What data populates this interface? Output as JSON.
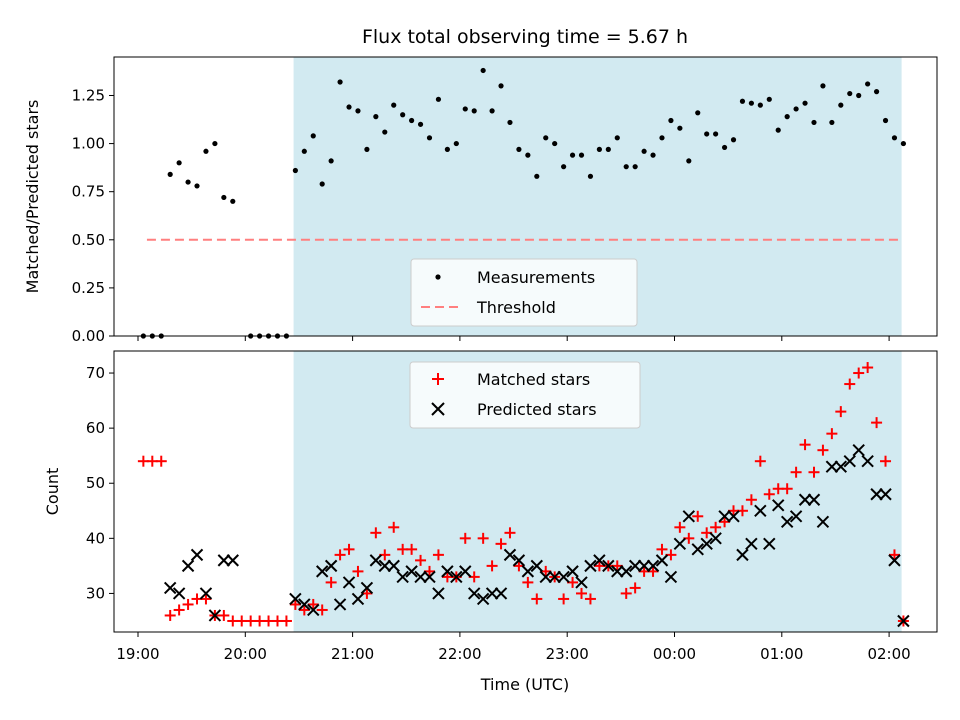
{
  "title": "Flux total observing time = 5.67 h",
  "chart_data": [
    {
      "type": "scatter",
      "panel": "top",
      "ylabel": "Matched/Predicted stars",
      "ylim": [
        0,
        1.45
      ],
      "y_ticks": [
        0,
        0.25,
        0.5,
        0.75,
        1.0,
        1.25
      ],
      "y_tick_labels": [
        "0.00",
        "0.25",
        "0.50",
        "0.75",
        "1.00",
        "1.25"
      ],
      "shaded_region": {
        "start": "20:27",
        "end": "02:07",
        "color": "#add8e6"
      },
      "threshold": {
        "name": "Threshold",
        "value": 0.5,
        "from": "19:05",
        "to": "02:07",
        "color": "#ff7f7f",
        "style": "dashed"
      },
      "legend_position": "lower-center",
      "series": [
        {
          "name": "Measurements",
          "color": "#000000",
          "marker": "dot",
          "points": [
            [
              "19:03",
              0
            ],
            [
              "19:08",
              0
            ],
            [
              "19:13",
              0
            ],
            [
              "19:18",
              0.84
            ],
            [
              "19:23",
              0.9
            ],
            [
              "19:28",
              0.8
            ],
            [
              "19:33",
              0.78
            ],
            [
              "19:38",
              0.96
            ],
            [
              "19:43",
              1.0
            ],
            [
              "19:48",
              0.72
            ],
            [
              "19:53",
              0.7
            ],
            [
              "20:03",
              0
            ],
            [
              "20:08",
              0
            ],
            [
              "20:13",
              0
            ],
            [
              "20:18",
              0
            ],
            [
              "20:23",
              0
            ],
            [
              "20:28",
              0.86
            ],
            [
              "20:33",
              0.96
            ],
            [
              "20:38",
              1.04
            ],
            [
              "20:43",
              0.79
            ],
            [
              "20:48",
              0.91
            ],
            [
              "20:53",
              1.32
            ],
            [
              "20:58",
              1.19
            ],
            [
              "21:03",
              1.17
            ],
            [
              "21:08",
              0.97
            ],
            [
              "21:13",
              1.14
            ],
            [
              "21:18",
              1.06
            ],
            [
              "21:23",
              1.2
            ],
            [
              "21:28",
              1.15
            ],
            [
              "21:33",
              1.12
            ],
            [
              "21:38",
              1.1
            ],
            [
              "21:43",
              1.03
            ],
            [
              "21:48",
              1.23
            ],
            [
              "21:53",
              0.97
            ],
            [
              "21:58",
              1.0
            ],
            [
              "22:03",
              1.18
            ],
            [
              "22:08",
              1.17
            ],
            [
              "22:13",
              1.38
            ],
            [
              "22:18",
              1.17
            ],
            [
              "22:23",
              1.3
            ],
            [
              "22:28",
              1.11
            ],
            [
              "22:33",
              0.97
            ],
            [
              "22:38",
              0.94
            ],
            [
              "22:43",
              0.83
            ],
            [
              "22:48",
              1.03
            ],
            [
              "22:53",
              1.0
            ],
            [
              "22:58",
              0.88
            ],
            [
              "23:03",
              0.94
            ],
            [
              "23:08",
              0.94
            ],
            [
              "23:13",
              0.83
            ],
            [
              "23:18",
              0.97
            ],
            [
              "23:23",
              0.97
            ],
            [
              "23:28",
              1.03
            ],
            [
              "23:33",
              0.88
            ],
            [
              "23:38",
              0.88
            ],
            [
              "23:43",
              0.96
            ],
            [
              "23:48",
              0.94
            ],
            [
              "23:53",
              1.03
            ],
            [
              "23:58",
              1.12
            ],
            [
              "00:03",
              1.08
            ],
            [
              "00:08",
              0.91
            ],
            [
              "00:13",
              1.16
            ],
            [
              "00:18",
              1.05
            ],
            [
              "00:23",
              1.05
            ],
            [
              "00:28",
              0.98
            ],
            [
              "00:33",
              1.02
            ],
            [
              "00:38",
              1.22
            ],
            [
              "00:43",
              1.21
            ],
            [
              "00:48",
              1.2
            ],
            [
              "00:53",
              1.23
            ],
            [
              "00:58",
              1.07
            ],
            [
              "01:03",
              1.14
            ],
            [
              "01:08",
              1.18
            ],
            [
              "01:13",
              1.21
            ],
            [
              "01:18",
              1.11
            ],
            [
              "01:23",
              1.3
            ],
            [
              "01:28",
              1.11
            ],
            [
              "01:33",
              1.2
            ],
            [
              "01:38",
              1.26
            ],
            [
              "01:43",
              1.25
            ],
            [
              "01:48",
              1.31
            ],
            [
              "01:53",
              1.27
            ],
            [
              "01:58",
              1.12
            ],
            [
              "02:03",
              1.03
            ],
            [
              "02:08",
              1.0
            ]
          ]
        },
        {
          "name": "Threshold",
          "color": "#ff7f7f",
          "marker": "dashed-line"
        }
      ]
    },
    {
      "type": "scatter",
      "panel": "bottom",
      "ylabel": "Count",
      "xlabel": "Time (UTC)",
      "ylim": [
        23,
        74
      ],
      "y_ticks": [
        30,
        40,
        50,
        60,
        70
      ],
      "y_tick_labels": [
        "30",
        "40",
        "50",
        "60",
        "70"
      ],
      "x_ticks": [
        "19:00",
        "20:00",
        "21:00",
        "22:00",
        "23:00",
        "00:00",
        "01:00",
        "02:00"
      ],
      "shaded_region": {
        "start": "20:27",
        "end": "02:07",
        "color": "#add8e6"
      },
      "legend_position": "upper-center",
      "series": [
        {
          "name": "Matched stars",
          "color": "#ff0000",
          "marker": "plus",
          "points": [
            [
              "19:03",
              54
            ],
            [
              "19:08",
              54
            ],
            [
              "19:13",
              54
            ],
            [
              "19:18",
              26
            ],
            [
              "19:23",
              27
            ],
            [
              "19:28",
              28
            ],
            [
              "19:33",
              29
            ],
            [
              "19:38",
              29
            ],
            [
              "19:43",
              26
            ],
            [
              "19:48",
              26
            ],
            [
              "19:53",
              25
            ],
            [
              "19:58",
              25
            ],
            [
              "20:03",
              25
            ],
            [
              "20:08",
              25
            ],
            [
              "20:13",
              25
            ],
            [
              "20:18",
              25
            ],
            [
              "20:23",
              25
            ],
            [
              "20:28",
              28
            ],
            [
              "20:33",
              27
            ],
            [
              "20:38",
              28
            ],
            [
              "20:43",
              27
            ],
            [
              "20:48",
              32
            ],
            [
              "20:53",
              37
            ],
            [
              "20:58",
              38
            ],
            [
              "21:03",
              34
            ],
            [
              "21:08",
              30
            ],
            [
              "21:13",
              41
            ],
            [
              "21:18",
              37
            ],
            [
              "21:23",
              42
            ],
            [
              "21:28",
              38
            ],
            [
              "21:33",
              38
            ],
            [
              "21:38",
              36
            ],
            [
              "21:43",
              34
            ],
            [
              "21:48",
              37
            ],
            [
              "21:53",
              33
            ],
            [
              "21:58",
              33
            ],
            [
              "22:03",
              40
            ],
            [
              "22:08",
              33
            ],
            [
              "22:13",
              40
            ],
            [
              "22:18",
              35
            ],
            [
              "22:23",
              39
            ],
            [
              "22:28",
              41
            ],
            [
              "22:33",
              35
            ],
            [
              "22:38",
              32
            ],
            [
              "22:43",
              29
            ],
            [
              "22:48",
              34
            ],
            [
              "22:53",
              33
            ],
            [
              "22:58",
              29
            ],
            [
              "23:03",
              32
            ],
            [
              "23:08",
              30
            ],
            [
              "23:13",
              29
            ],
            [
              "23:18",
              35
            ],
            [
              "23:23",
              35
            ],
            [
              "23:28",
              35
            ],
            [
              "23:33",
              30
            ],
            [
              "23:38",
              31
            ],
            [
              "23:43",
              34
            ],
            [
              "23:48",
              34
            ],
            [
              "23:53",
              38
            ],
            [
              "23:58",
              37
            ],
            [
              "00:03",
              42
            ],
            [
              "00:08",
              40
            ],
            [
              "00:13",
              44
            ],
            [
              "00:18",
              41
            ],
            [
              "00:23",
              42
            ],
            [
              "00:28",
              43
            ],
            [
              "00:33",
              45
            ],
            [
              "00:38",
              45
            ],
            [
              "00:43",
              47
            ],
            [
              "00:48",
              54
            ],
            [
              "00:53",
              48
            ],
            [
              "00:58",
              49
            ],
            [
              "01:03",
              49
            ],
            [
              "01:08",
              52
            ],
            [
              "01:13",
              57
            ],
            [
              "01:18",
              52
            ],
            [
              "01:23",
              56
            ],
            [
              "01:28",
              59
            ],
            [
              "01:33",
              63
            ],
            [
              "01:38",
              68
            ],
            [
              "01:43",
              70
            ],
            [
              "01:48",
              71
            ],
            [
              "01:53",
              61
            ],
            [
              "01:58",
              54
            ],
            [
              "02:03",
              37
            ],
            [
              "02:08",
              25
            ]
          ]
        },
        {
          "name": "Predicted stars",
          "color": "#000000",
          "marker": "x",
          "points": [
            [
              "19:18",
              31
            ],
            [
              "19:23",
              30
            ],
            [
              "19:28",
              35
            ],
            [
              "19:33",
              37
            ],
            [
              "19:38",
              30
            ],
            [
              "19:43",
              26
            ],
            [
              "19:48",
              36
            ],
            [
              "19:53",
              36
            ],
            [
              "20:28",
              29
            ],
            [
              "20:33",
              28
            ],
            [
              "20:38",
              27
            ],
            [
              "20:43",
              34
            ],
            [
              "20:48",
              35
            ],
            [
              "20:53",
              28
            ],
            [
              "20:58",
              32
            ],
            [
              "21:03",
              29
            ],
            [
              "21:08",
              31
            ],
            [
              "21:13",
              36
            ],
            [
              "21:18",
              35
            ],
            [
              "21:23",
              35
            ],
            [
              "21:28",
              33
            ],
            [
              "21:33",
              34
            ],
            [
              "21:38",
              33
            ],
            [
              "21:43",
              33
            ],
            [
              "21:48",
              30
            ],
            [
              "21:53",
              34
            ],
            [
              "21:58",
              33
            ],
            [
              "22:03",
              34
            ],
            [
              "22:08",
              30
            ],
            [
              "22:13",
              29
            ],
            [
              "22:18",
              30
            ],
            [
              "22:23",
              30
            ],
            [
              "22:28",
              37
            ],
            [
              "22:33",
              36
            ],
            [
              "22:38",
              34
            ],
            [
              "22:43",
              35
            ],
            [
              "22:48",
              33
            ],
            [
              "22:53",
              33
            ],
            [
              "22:58",
              33
            ],
            [
              "23:03",
              34
            ],
            [
              "23:08",
              32
            ],
            [
              "23:13",
              35
            ],
            [
              "23:18",
              36
            ],
            [
              "23:23",
              35
            ],
            [
              "23:28",
              34
            ],
            [
              "23:33",
              34
            ],
            [
              "23:38",
              35
            ],
            [
              "23:43",
              35
            ],
            [
              "23:48",
              35
            ],
            [
              "23:53",
              36
            ],
            [
              "23:58",
              33
            ],
            [
              "00:03",
              39
            ],
            [
              "00:08",
              44
            ],
            [
              "00:13",
              38
            ],
            [
              "00:18",
              39
            ],
            [
              "00:23",
              40
            ],
            [
              "00:28",
              44
            ],
            [
              "00:33",
              44
            ],
            [
              "00:38",
              37
            ],
            [
              "00:43",
              39
            ],
            [
              "00:48",
              45
            ],
            [
              "00:53",
              39
            ],
            [
              "00:58",
              46
            ],
            [
              "01:03",
              43
            ],
            [
              "01:08",
              44
            ],
            [
              "01:13",
              47
            ],
            [
              "01:18",
              47
            ],
            [
              "01:23",
              43
            ],
            [
              "01:28",
              53
            ],
            [
              "01:33",
              53
            ],
            [
              "01:38",
              54
            ],
            [
              "01:43",
              56
            ],
            [
              "01:48",
              54
            ],
            [
              "01:53",
              48
            ],
            [
              "01:58",
              48
            ],
            [
              "02:03",
              36
            ],
            [
              "02:08",
              25
            ]
          ]
        }
      ]
    }
  ]
}
